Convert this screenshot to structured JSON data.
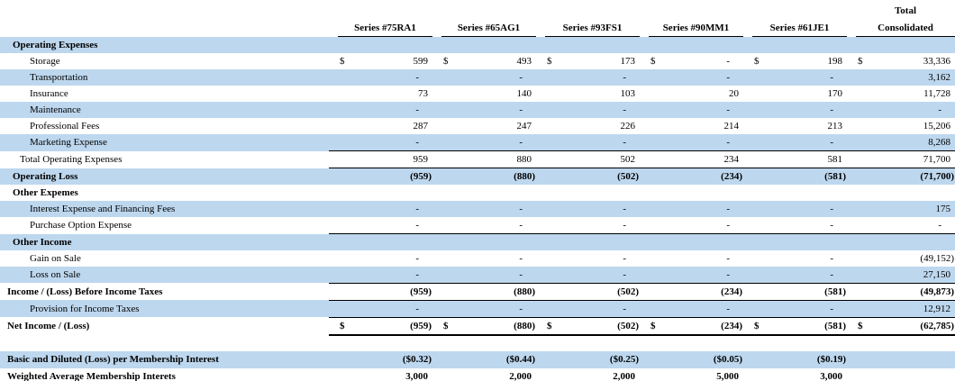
{
  "currency_symbol": "$",
  "colors": {
    "band_blue": "#BDD7EE",
    "rule_black": "#000000",
    "text": "#000000"
  },
  "header": {
    "total_label": "Total",
    "columns": [
      "Series #75RA1",
      "Series #65AG1",
      "Series #93FS1",
      "Series #90MM1",
      "Series #61JE1",
      "Consolidated"
    ]
  },
  "table": {
    "rows": [
      {
        "label": "Operating Expenses",
        "type": "section",
        "shade": "blue",
        "dollar": false,
        "bold_values": false,
        "border": "",
        "values": [
          "",
          "",
          "",
          "",
          "",
          ""
        ]
      },
      {
        "label": "Storage",
        "type": "detail",
        "shade": "white",
        "dollar": true,
        "bold_values": false,
        "border": "",
        "values": [
          "599",
          "493",
          "173",
          "-",
          "198",
          "33,336"
        ]
      },
      {
        "label": "Transportation",
        "type": "detail",
        "shade": "blue",
        "dollar": false,
        "bold_values": false,
        "border": "",
        "values": [
          "-",
          "-",
          "-",
          "-",
          "-",
          "3,162"
        ]
      },
      {
        "label": "Insurance",
        "type": "detail",
        "shade": "white",
        "dollar": false,
        "bold_values": false,
        "border": "",
        "values": [
          "73",
          "140",
          "103",
          "20",
          "170",
          "11,728"
        ]
      },
      {
        "label": "Maintenance",
        "type": "detail",
        "shade": "blue",
        "dollar": false,
        "bold_values": false,
        "border": "",
        "values": [
          "-",
          "-",
          "-",
          "-",
          "-",
          "-"
        ]
      },
      {
        "label": "Professional Fees",
        "type": "detail",
        "shade": "white",
        "dollar": false,
        "bold_values": false,
        "border": "",
        "values": [
          "287",
          "247",
          "226",
          "214",
          "213",
          "15,206"
        ]
      },
      {
        "label": "Marketing Expense",
        "type": "detail",
        "shade": "blue",
        "dollar": false,
        "bold_values": false,
        "border": "thin",
        "values": [
          "-",
          "-",
          "-",
          "-",
          "-",
          "8,268"
        ]
      },
      {
        "label": "Total Operating Expenses",
        "type": "subtotal",
        "shade": "white",
        "dollar": false,
        "bold_values": false,
        "border": "thin",
        "values": [
          "959",
          "880",
          "502",
          "234",
          "581",
          "71,700"
        ]
      },
      {
        "label": "Operating Loss",
        "type": "section",
        "shade": "blue",
        "dollar": false,
        "bold_values": true,
        "border": "",
        "values": [
          "(959)",
          "(880)",
          "(502)",
          "(234)",
          "(581)",
          "(71,700)"
        ]
      },
      {
        "label": "Other Expemes",
        "type": "section",
        "shade": "white",
        "dollar": false,
        "bold_values": false,
        "border": "",
        "values": [
          "",
          "",
          "",
          "",
          "",
          ""
        ]
      },
      {
        "label": "Interest Expense and Financing Fees",
        "type": "detail",
        "shade": "blue",
        "dollar": false,
        "bold_values": false,
        "border": "",
        "values": [
          "-",
          "-",
          "-",
          "-",
          "-",
          "175"
        ]
      },
      {
        "label": "Purchase Option Expense",
        "type": "detail",
        "shade": "white",
        "dollar": false,
        "bold_values": false,
        "border": "thin",
        "values": [
          "-",
          "-",
          "-",
          "-",
          "-",
          "-"
        ]
      },
      {
        "label": "Other Income",
        "type": "section",
        "shade": "blue",
        "dollar": false,
        "bold_values": false,
        "border": "",
        "values": [
          "",
          "",
          "",
          "",
          "",
          ""
        ]
      },
      {
        "label": "Gain on Sale",
        "type": "detail",
        "shade": "white",
        "dollar": false,
        "bold_values": false,
        "border": "",
        "values": [
          "-",
          "-",
          "-",
          "-",
          "-",
          "(49,152)"
        ]
      },
      {
        "label": "Loss on Sale",
        "type": "detail",
        "shade": "blue",
        "dollar": false,
        "bold_values": false,
        "border": "thin",
        "values": [
          "-",
          "-",
          "-",
          "-",
          "-",
          "27,150"
        ]
      },
      {
        "label": "Income / (Loss) Before Income Taxes",
        "type": "total",
        "shade": "white",
        "dollar": false,
        "bold_values": true,
        "border": "thin",
        "values": [
          "(959)",
          "(880)",
          "(502)",
          "(234)",
          "(581)",
          "(49,873)"
        ]
      },
      {
        "label": "Provision for Income Taxes",
        "type": "detail",
        "shade": "blue",
        "dollar": false,
        "bold_values": false,
        "border": "thin",
        "values": [
          "-",
          "-",
          "-",
          "-",
          "-",
          "12,912"
        ]
      },
      {
        "label": "Net Income / (Loss)",
        "type": "total",
        "shade": "white",
        "dollar": true,
        "bold_values": true,
        "border": "thick",
        "values": [
          "(959)",
          "(880)",
          "(502)",
          "(234)",
          "(581)",
          "(62,785)"
        ]
      }
    ],
    "bottom_rows": [
      {
        "label": "Basic and Diluted (Loss) per Membership Interest",
        "shade": "blue",
        "bold_values": true,
        "values": [
          "($0.32)",
          "($0.44)",
          "($0.25)",
          "($0.05)",
          "($0.19)",
          ""
        ]
      },
      {
        "label": "Weighted Average Membership Interets",
        "shade": "white",
        "bold_values": true,
        "values": [
          "3,000",
          "2,000",
          "2,000",
          "5,000",
          "3,000",
          ""
        ]
      }
    ]
  }
}
